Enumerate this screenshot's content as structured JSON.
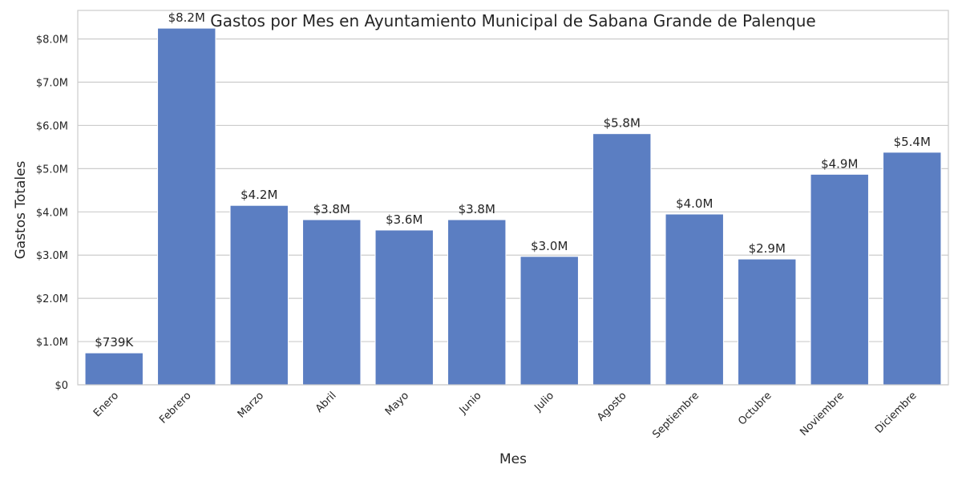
{
  "chart_data": {
    "type": "bar",
    "title": "Gastos por Mes en Ayuntamiento Municipal de Sabana Grande de Palenque",
    "xlabel": "Mes",
    "ylabel": "Gastos Totales",
    "categories": [
      "Enero",
      "Febrero",
      "Marzo",
      "Abril",
      "Mayo",
      "Junio",
      "Julio",
      "Agosto",
      "Septiembre",
      "Octubre",
      "Noviembre",
      "Diciembre"
    ],
    "values": [
      739000,
      8250000,
      4150000,
      3820000,
      3580000,
      3820000,
      2970000,
      5810000,
      3950000,
      2910000,
      4870000,
      5380000
    ],
    "data_labels": [
      "$739K",
      "$8.2M",
      "$4.2M",
      "$3.8M",
      "$3.6M",
      "$3.8M",
      "$3.0M",
      "$5.8M",
      "$4.0M",
      "$2.9M",
      "$4.9M",
      "$5.4M"
    ],
    "yticks": [
      0,
      1000000,
      2000000,
      3000000,
      4000000,
      5000000,
      6000000,
      7000000,
      8000000
    ],
    "ytick_labels": [
      "$0",
      "$1.0M",
      "$2.0M",
      "$3.0M",
      "$4.0M",
      "$5.0M",
      "$6.0M",
      "$7.0M",
      "$8.0M"
    ],
    "ylim": [
      0,
      8660000
    ],
    "grid": "horizontal",
    "bar_color": "#5b7ec2"
  }
}
